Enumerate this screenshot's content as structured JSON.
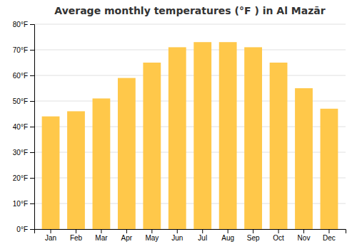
{
  "chart_data": {
    "type": "bar",
    "title": "Average monthly temperatures (°F ) in Al Mazār",
    "categories": [
      "Jan",
      "Feb",
      "Mar",
      "Apr",
      "May",
      "Jun",
      "Jul",
      "Aug",
      "Sep",
      "Oct",
      "Nov",
      "Dec"
    ],
    "values": [
      44,
      46,
      51,
      59,
      65,
      71,
      73,
      73,
      71,
      65,
      55,
      47
    ],
    "color": "#FFC84A",
    "ylim": [
      0,
      80
    ],
    "yticks": [
      {
        "value": 0,
        "label": "0°F"
      },
      {
        "value": 10,
        "label": "10°F"
      },
      {
        "value": 20,
        "label": "20°F"
      },
      {
        "value": 30,
        "label": "30°F"
      },
      {
        "value": 40,
        "label": "40°F"
      },
      {
        "value": 50,
        "label": "50°F"
      },
      {
        "value": 60,
        "label": "60°F"
      },
      {
        "value": 70,
        "label": "70°F"
      },
      {
        "value": 80,
        "label": "80°F"
      }
    ],
    "grid": true
  }
}
